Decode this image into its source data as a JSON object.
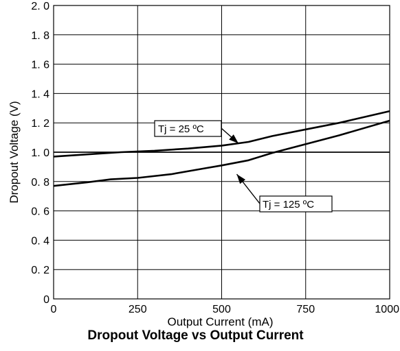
{
  "chart_data": {
    "type": "line",
    "title": "Dropout Voltage vs Output Current",
    "xlabel": "Output Current (mA)",
    "ylabel": "Dropout Voltage (V)",
    "xlim": [
      0,
      1000
    ],
    "ylim": [
      0,
      2.0
    ],
    "grid": true,
    "x_ticks": [
      {
        "value": 0,
        "label": "0"
      },
      {
        "value": 250,
        "label": "250"
      },
      {
        "value": 500,
        "label": "500"
      },
      {
        "value": 750,
        "label": "750"
      },
      {
        "value": 1000,
        "label": "1000"
      }
    ],
    "y_ticks": [
      {
        "value": 0,
        "label": "0"
      },
      {
        "value": 0.2,
        "label": "0. 2"
      },
      {
        "value": 0.4,
        "label": "0. 4"
      },
      {
        "value": 0.6,
        "label": "0. 6"
      },
      {
        "value": 0.8,
        "label": "0. 8"
      },
      {
        "value": 1.0,
        "label": "1. 0"
      },
      {
        "value": 1.2,
        "label": "1. 2"
      },
      {
        "value": 1.4,
        "label": "1. 4"
      },
      {
        "value": 1.6,
        "label": "1. 6"
      },
      {
        "value": 1.8,
        "label": "1. 8"
      },
      {
        "value": 2.0,
        "label": "2. 0"
      }
    ],
    "series": [
      {
        "name": "Tj = 25 ºC",
        "x": [
          0,
          100,
          200,
          300,
          400,
          500,
          580,
          650,
          750,
          850,
          1000
        ],
        "y": [
          0.97,
          0.985,
          1.0,
          1.01,
          1.025,
          1.045,
          1.07,
          1.11,
          1.155,
          1.2,
          1.28
        ]
      },
      {
        "name": "Tj = 125 ºC",
        "x": [
          0,
          100,
          170,
          250,
          350,
          450,
          500,
          580,
          650,
          750,
          850,
          1000
        ],
        "y": [
          0.77,
          0.795,
          0.815,
          0.825,
          0.85,
          0.89,
          0.91,
          0.945,
          0.995,
          1.055,
          1.115,
          1.215
        ]
      }
    ],
    "annotations": [
      {
        "text": "Tj = 25 ºC",
        "series": 0,
        "arrow_to": {
          "x": 550,
          "y": 1.06
        }
      },
      {
        "text": "Tj = 125 ºC",
        "series": 1,
        "arrow_to": {
          "x": 545,
          "y": 0.85
        }
      }
    ]
  }
}
